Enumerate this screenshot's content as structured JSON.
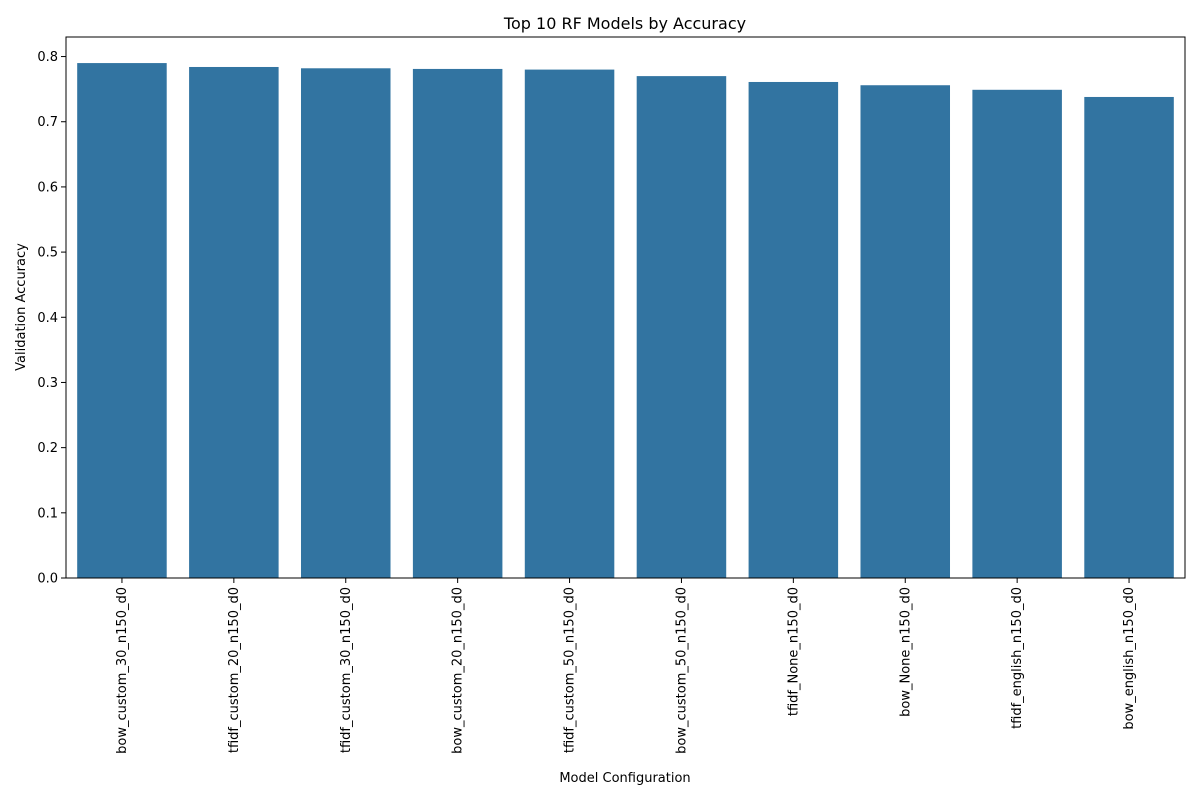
{
  "chart_data": {
    "type": "bar",
    "title": "Top 10 RF Models by Accuracy",
    "xlabel": "Model Configuration",
    "ylabel": "Validation Accuracy",
    "categories": [
      "bow_custom_30_n150_d0",
      "tfidf_custom_20_n150_d0",
      "tfidf_custom_30_n150_d0",
      "bow_custom_20_n150_d0",
      "tfidf_custom_50_n150_d0",
      "bow_custom_50_n150_d0",
      "tfidf_None_n150_d0",
      "bow_None_n150_d0",
      "tfidf_english_n150_d0",
      "bow_english_n150_d0"
    ],
    "values": [
      0.79,
      0.784,
      0.782,
      0.781,
      0.78,
      0.77,
      0.761,
      0.756,
      0.749,
      0.738
    ],
    "ylim": [
      0,
      0.83
    ],
    "yticks": [
      "0.0",
      "0.1",
      "0.2",
      "0.3",
      "0.4",
      "0.5",
      "0.6",
      "0.7",
      "0.8"
    ],
    "grid": false,
    "bar_color": "#3274a1"
  }
}
